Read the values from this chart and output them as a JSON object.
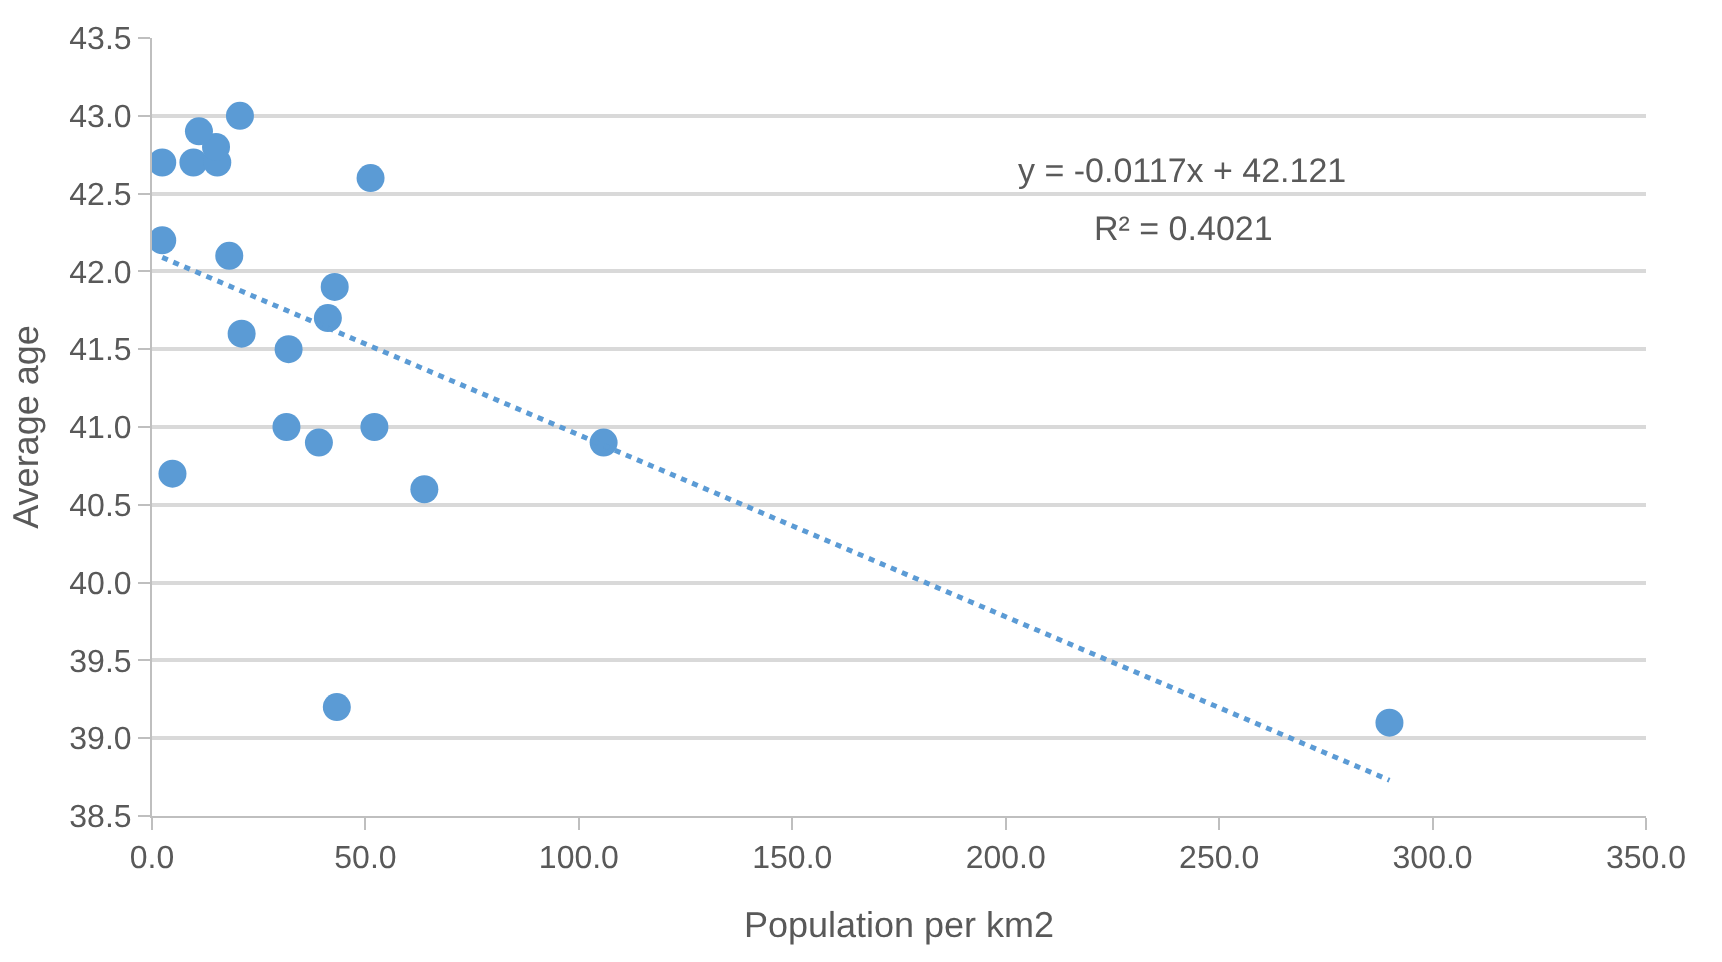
{
  "chart_data": {
    "type": "scatter",
    "xlabel": "Population per km2",
    "ylabel": "Average age",
    "series": [
      {
        "color": "#5b9bd5",
        "marker": "circle",
        "x": [
          2.4,
          9.7,
          15.3,
          15.0,
          11.0,
          20.6,
          51.2,
          2.4,
          18.1,
          42.8,
          41.2,
          21.0,
          32.0,
          31.5,
          39.1,
          52.1,
          4.8,
          63.8,
          43.3,
          105.8,
          289.9
        ],
        "values": [
          42.7,
          42.7,
          42.7,
          42.8,
          42.9,
          43.0,
          42.6,
          42.2,
          42.1,
          41.9,
          41.7,
          41.6,
          41.5,
          41.0,
          40.9,
          41.0,
          40.7,
          40.6,
          39.2,
          40.9,
          39.1
        ]
      },
      {
        "type": "line",
        "color": "#5b9bd5",
        "line_style": "dotted",
        "marker": "none",
        "x": [
          2.4,
          289.9
        ],
        "values": [
          42.09,
          38.73
        ]
      }
    ],
    "annotations": [
      "y = -0.0117x + 42.121",
      "R² = 0.4021"
    ],
    "xlim": [
      0,
      350
    ],
    "xticks": [
      {
        "value": 0,
        "label": "0.0"
      },
      {
        "value": 50,
        "label": "50.0"
      },
      {
        "value": 100,
        "label": "100.0"
      },
      {
        "value": 150,
        "label": "150.0"
      },
      {
        "value": 200,
        "label": "200.0"
      },
      {
        "value": 250,
        "label": "250.0"
      },
      {
        "value": 300,
        "label": "300.0"
      },
      {
        "value": 350,
        "label": "350.0"
      }
    ],
    "ylim": [
      38.5,
      43.5
    ],
    "yticks": [
      38.5,
      {
        "value": 39,
        "label": "39.0"
      },
      39.5,
      {
        "value": 40,
        "label": "40.0"
      },
      40.5,
      {
        "value": 41,
        "label": "41.0"
      },
      41.5,
      {
        "value": 42,
        "label": "42.0"
      },
      42.5,
      {
        "value": 43,
        "label": "43.0"
      },
      43.5
    ],
    "grid": "y"
  }
}
